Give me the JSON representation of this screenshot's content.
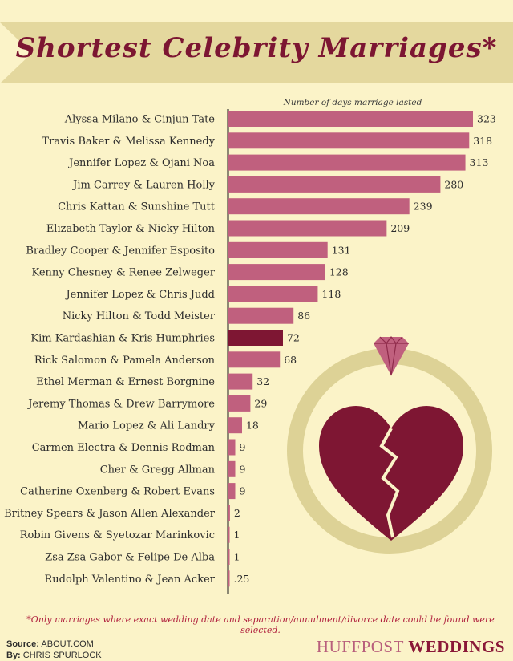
{
  "title": "Shortest Celebrity Marriages*",
  "footnote": "*Only marriages where exact wedding date and separation/annulment/divorce date could be found were selected.",
  "source": {
    "label": "Source:",
    "value": "ABOUT.COM"
  },
  "byline": {
    "label": "By:",
    "value": "CHRIS SPURLOCK"
  },
  "brand": {
    "part1": "HUFFPOST",
    "part2": "WEDDINGS"
  },
  "colors": {
    "background": "#fbf3c8",
    "banner": "#e4d89e",
    "bar": "#c0607e",
    "highlight_bar": "#7e1633",
    "ring": "#ddd296",
    "heart": "#7e1633",
    "diamond": "#c0607e"
  },
  "chart_data": {
    "type": "bar",
    "orientation": "horizontal",
    "axis_title": "Number of days marriage lasted",
    "highlight": "Kim Kardashian & Kris Humphries",
    "categories": [
      "Alyssa Milano & Cinjun Tate",
      "Travis Baker & Melissa Kennedy",
      "Jennifer Lopez & Ojani Noa",
      "Jim Carrey & Lauren Holly",
      "Chris Kattan & Sunshine Tutt",
      "Elizabeth Taylor & Nicky Hilton",
      "Bradley Cooper & Jennifer Esposito",
      "Kenny Chesney & Renee Zelweger",
      "Jennifer Lopez & Chris Judd",
      "Nicky Hilton & Todd Meister",
      "Kim Kardashian & Kris Humphries",
      "Rick Salomon & Pamela Anderson",
      "Ethel Merman & Ernest Borgnine",
      "Jeremy Thomas & Drew Barrymore",
      "Mario Lopez & Ali Landry",
      "Carmen Electra & Dennis Rodman",
      "Cher & Gregg Allman",
      "Catherine Oxenberg & Robert Evans",
      "Britney Spears & Jason Allen Alexander",
      "Robin Givens & Syetozar Marinkovic",
      "Zsa Zsa Gabor & Felipe De Alba",
      "Rudolph Valentino & Jean Acker"
    ],
    "values": [
      323,
      318,
      313,
      280,
      239,
      209,
      131,
      128,
      118,
      86,
      72,
      68,
      32,
      29,
      18,
      9,
      9,
      9,
      2,
      1,
      1,
      0.25
    ],
    "value_labels": [
      "323",
      "318",
      "313",
      "280",
      "239",
      "209",
      "131",
      "128",
      "118",
      "86",
      "72",
      "68",
      "32",
      "29",
      "18",
      "9",
      "9",
      "9",
      "2",
      "1",
      "1",
      ".25"
    ],
    "xlim": [
      0,
      323
    ]
  }
}
